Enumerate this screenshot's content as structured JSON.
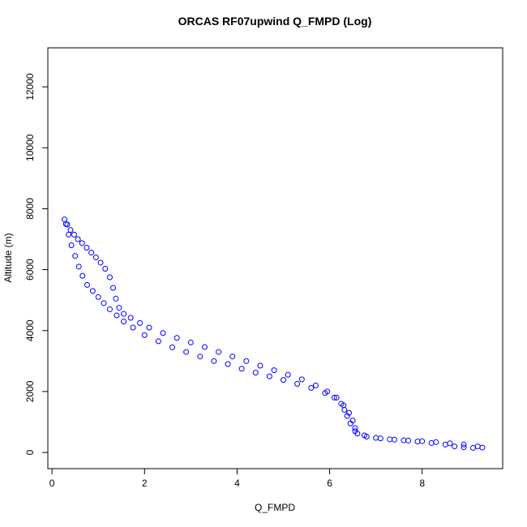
{
  "chart_data": {
    "type": "scatter",
    "title": "ORCAS RF07upwind Q_FMPD (Log)",
    "x_label": "Q_FMPD",
    "y_label": "Altitude (m)",
    "color": "#0000ff",
    "xlim": [
      -0.09,
      9.74
    ],
    "ylim": [
      -530,
      13280
    ],
    "xticks": [
      0,
      2,
      4,
      6,
      8
    ],
    "yticks": [
      0,
      2000,
      4000,
      6000,
      8000,
      10000,
      12000
    ],
    "x": [
      0.27,
      0.33,
      0.4,
      0.48,
      0.56,
      0.65,
      0.75,
      0.85,
      0.95,
      1.05,
      1.15,
      1.25,
      1.32,
      1.38,
      1.45,
      1.55,
      1.7,
      1.9,
      2.1,
      2.4,
      2.7,
      3.0,
      3.3,
      3.6,
      3.9,
      4.2,
      4.5,
      4.8,
      5.1,
      5.4,
      5.7,
      5.95,
      6.15,
      6.3,
      6.42,
      6.5,
      6.55,
      6.6,
      6.8,
      7.1,
      7.4,
      7.7,
      8.0,
      8.3,
      8.6,
      8.9,
      9.2,
      0.3,
      0.36,
      0.42,
      0.5,
      0.58,
      0.66,
      0.76,
      0.88,
      1.0,
      1.12,
      1.25,
      1.4,
      1.55,
      1.75,
      2.0,
      2.3,
      2.6,
      2.9,
      3.2,
      3.5,
      3.8,
      4.1,
      4.4,
      4.7,
      5.0,
      5.3,
      5.6,
      5.9,
      6.1,
      6.25,
      6.32,
      6.38,
      6.45,
      6.55,
      6.75,
      7.0,
      7.3,
      7.6,
      7.9,
      8.2,
      8.5,
      8.7,
      8.9,
      9.1,
      9.3
    ],
    "values": [
      7650,
      7480,
      7300,
      7150,
      7000,
      6870,
      6720,
      6560,
      6400,
      6230,
      6030,
      5750,
      5400,
      5050,
      4750,
      4550,
      4420,
      4250,
      4100,
      3920,
      3760,
      3610,
      3460,
      3300,
      3150,
      3000,
      2850,
      2700,
      2550,
      2400,
      2200,
      2000,
      1800,
      1550,
      1300,
      1050,
      800,
      620,
      520,
      460,
      420,
      390,
      370,
      340,
      300,
      260,
      200,
      7500,
      7150,
      6800,
      6450,
      6100,
      5800,
      5500,
      5300,
      5100,
      4900,
      4700,
      4500,
      4300,
      4100,
      3850,
      3650,
      3450,
      3300,
      3150,
      3000,
      2900,
      2750,
      2620,
      2500,
      2380,
      2250,
      2120,
      1950,
      1800,
      1600,
      1400,
      1200,
      950,
      700,
      560,
      480,
      430,
      400,
      360,
      310,
      260,
      200,
      170,
      150,
      160
    ]
  }
}
